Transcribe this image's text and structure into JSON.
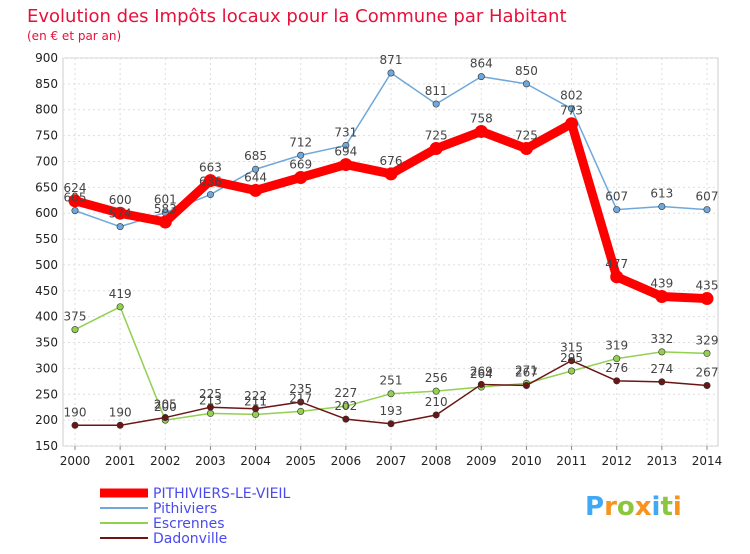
{
  "title": "Evolution des Impôts locaux pour la Commune par Habitant",
  "subtitle": "(en € et par an)",
  "brand": "Proxiti",
  "chart_data": {
    "type": "line",
    "title": "Evolution des Impôts locaux pour la Commune par Habitant",
    "subtitle": "(en € et par an)",
    "xlabel": "",
    "ylabel": "",
    "x": [
      2000,
      2001,
      2002,
      2003,
      2004,
      2005,
      2006,
      2007,
      2008,
      2009,
      2010,
      2011,
      2012,
      2013,
      2014
    ],
    "ylim": [
      150,
      900
    ],
    "yticks": [
      150,
      200,
      250,
      300,
      350,
      400,
      450,
      500,
      550,
      600,
      650,
      700,
      750,
      800,
      850,
      900
    ],
    "grid": true,
    "legend": "bottom-left",
    "series": [
      {
        "name": "PITHIVIERS-LE-VIEIL",
        "color": "#ff0000",
        "values": [
          624,
          600,
          583,
          663,
          644,
          669,
          694,
          676,
          725,
          758,
          725,
          773,
          477,
          439,
          435
        ]
      },
      {
        "name": "Pithiviers",
        "color": "#6fa8dc",
        "values": [
          605,
          574,
          601,
          636,
          685,
          712,
          731,
          871,
          811,
          864,
          850,
          802,
          607,
          613,
          607
        ]
      },
      {
        "name": "Escrennes",
        "color": "#92d050",
        "values": [
          375,
          419,
          200,
          213,
          211,
          217,
          227,
          251,
          256,
          264,
          271,
          295,
          319,
          332,
          329
        ]
      },
      {
        "name": "Dadonville",
        "color": "#6b1515",
        "values": [
          190,
          190,
          205,
          225,
          222,
          235,
          202,
          193,
          210,
          269,
          267,
          315,
          276,
          274,
          267
        ]
      }
    ],
    "data_labels": [
      [
        624,
        600,
        583,
        663,
        644,
        669,
        694,
        676,
        725,
        758,
        725,
        773,
        477,
        439,
        435
      ],
      [
        605,
        574,
        601,
        636,
        685,
        712,
        731,
        871,
        811,
        864,
        850,
        802,
        607,
        613,
        607
      ],
      [
        375,
        419,
        200,
        213,
        211,
        217,
        227,
        251,
        256,
        264,
        271,
        295,
        319,
        332,
        329
      ],
      [
        190,
        190,
        205,
        225,
        222,
        235,
        202,
        193,
        210,
        269,
        267,
        315,
        276,
        274,
        267
      ]
    ]
  },
  "colors": {
    "title": "#e8103a",
    "subtitle": "#e8103a",
    "legend_text": "#4a4af0",
    "grid": "#dddddd",
    "axis": "#888888"
  }
}
